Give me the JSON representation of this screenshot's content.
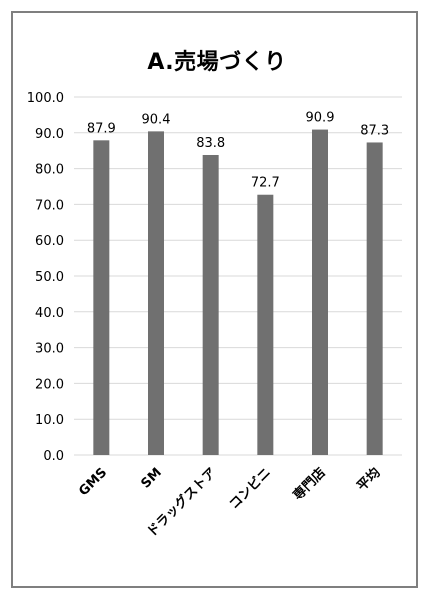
{
  "chart_data": {
    "type": "bar",
    "title": "A.売場づくり",
    "categories": [
      "GMS",
      "SM",
      "ドラッグストア",
      "コンビニ",
      "専門店",
      "平均"
    ],
    "values": [
      87.9,
      90.4,
      83.8,
      72.7,
      90.9,
      87.3
    ],
    "data_labels": [
      "87.9",
      "90.4",
      "83.8",
      "72.7",
      "90.9",
      "87.3"
    ],
    "yticks": [
      "0.0",
      "10.0",
      "20.0",
      "30.0",
      "40.0",
      "50.0",
      "60.0",
      "70.0",
      "80.0",
      "90.0",
      "100.0"
    ],
    "ylim": [
      0,
      100
    ],
    "xlabel": "",
    "ylabel": "",
    "grid": true,
    "legend": "none",
    "colors": {
      "bar": "#707070",
      "grid": "#d9d9d9",
      "border": "#7f7f7f",
      "text": "#000000"
    }
  }
}
